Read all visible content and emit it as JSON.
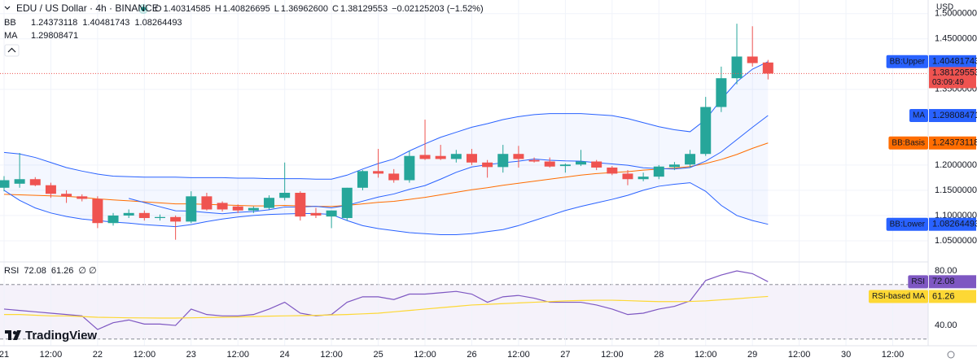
{
  "header": {
    "ohlc": [
      [
        "O",
        "1.40314585"
      ],
      [
        "H",
        "1.40826695"
      ],
      [
        "L",
        "1.36962600"
      ],
      [
        "C",
        "1.38129553"
      ]
    ],
    "change": "−0.02125203 (−1.52%)",
    "bb_label": "BB",
    "countdown": "03:09:49",
    "brand": "TradingView"
  },
  "chart_data": [
    {
      "type": "candlestick",
      "title": "EDU / US Dollar · 4h · BINANCE",
      "y_unit": "USD",
      "up_color": "#26a69a",
      "down_color": "#ef5350",
      "grid": true,
      "xlim": [
        -0.26,
        59.27
      ],
      "xticks": [
        {
          "value": 0,
          "label": "21"
        },
        {
          "value": 3,
          "label": "12:00"
        },
        {
          "value": 6,
          "label": "22"
        },
        {
          "value": 9,
          "label": "12:00"
        },
        {
          "value": 12,
          "label": "23"
        },
        {
          "value": 15,
          "label": "12:00"
        },
        {
          "value": 18,
          "label": "24"
        },
        {
          "value": 21,
          "label": "12:00"
        },
        {
          "value": 24,
          "label": "25"
        },
        {
          "value": 27,
          "label": "12:00"
        },
        {
          "value": 30,
          "label": "26"
        },
        {
          "value": 33,
          "label": "12:00"
        },
        {
          "value": 36,
          "label": "27"
        },
        {
          "value": 39,
          "label": "12:00"
        },
        {
          "value": 42,
          "label": "28"
        },
        {
          "value": 45,
          "label": "12:00"
        },
        {
          "value": 48,
          "label": "29"
        },
        {
          "value": 51,
          "label": "12:00"
        },
        {
          "value": 54,
          "label": "30"
        },
        {
          "value": 57,
          "label": "12:00"
        }
      ],
      "ylim": [
        1.008,
        1.527
      ],
      "yticks": [
        {
          "value": 1.5,
          "label": "1.50000000"
        },
        {
          "value": 1.45,
          "label": "1.45000000"
        },
        {
          "value": 1.35,
          "label": "1.35000000"
        },
        {
          "value": 1.2,
          "label": "1.20000000"
        },
        {
          "value": 1.15,
          "label": "1.15000000"
        },
        {
          "value": 1.1,
          "label": "1.10000000"
        },
        {
          "value": 1.05,
          "label": "1.05000000"
        }
      ],
      "candles": {
        "open": [
          1.155,
          1.163,
          1.172,
          1.16,
          1.143,
          1.138,
          1.133,
          1.085,
          1.1,
          1.105,
          1.095,
          1.097,
          1.088,
          1.138,
          1.125,
          1.118,
          1.11,
          1.115,
          1.135,
          1.145,
          1.105,
          1.098,
          1.095,
          1.155,
          1.188,
          1.183,
          1.17,
          1.22,
          1.218,
          1.212,
          1.222,
          1.205,
          1.196,
          1.222,
          1.21,
          1.207,
          1.198,
          1.201,
          1.207,
          1.195,
          1.183,
          1.172,
          1.177,
          1.196,
          1.201,
          1.222,
          1.315,
          1.372,
          1.415,
          1.40314585
        ],
        "high": [
          1.178,
          1.224,
          1.176,
          1.165,
          1.15,
          1.142,
          1.138,
          1.105,
          1.112,
          1.11,
          1.102,
          1.1,
          1.148,
          1.145,
          1.128,
          1.122,
          1.118,
          1.14,
          1.205,
          1.148,
          1.115,
          1.11,
          1.155,
          1.19,
          1.232,
          1.192,
          1.228,
          1.29,
          1.24,
          1.23,
          1.232,
          1.21,
          1.24,
          1.238,
          1.215,
          1.215,
          1.203,
          1.23,
          1.21,
          1.198,
          1.19,
          1.185,
          1.2,
          1.206,
          1.23,
          1.335,
          1.395,
          1.48,
          1.475,
          1.40826695
        ],
        "low": [
          1.148,
          1.155,
          1.158,
          1.135,
          1.125,
          1.128,
          1.075,
          1.08,
          1.095,
          1.09,
          1.09,
          1.052,
          1.085,
          1.11,
          1.108,
          1.105,
          1.105,
          1.112,
          1.13,
          1.09,
          1.095,
          1.075,
          1.09,
          1.15,
          1.175,
          1.165,
          1.165,
          1.21,
          1.21,
          1.205,
          1.2,
          1.175,
          1.185,
          1.195,
          1.205,
          1.195,
          1.185,
          1.198,
          1.19,
          1.18,
          1.16,
          1.168,
          1.172,
          1.19,
          1.195,
          1.218,
          1.305,
          1.36,
          1.395,
          1.369626
        ],
        "close": [
          1.17,
          1.172,
          1.16,
          1.143,
          1.138,
          1.133,
          1.085,
          1.1,
          1.105,
          1.095,
          1.097,
          1.088,
          1.138,
          1.112,
          1.112,
          1.11,
          1.115,
          1.135,
          1.145,
          1.098,
          1.1,
          1.11,
          1.155,
          1.188,
          1.183,
          1.17,
          1.218,
          1.212,
          1.212,
          1.222,
          1.205,
          1.196,
          1.222,
          1.212,
          1.207,
          1.197,
          1.201,
          1.207,
          1.195,
          1.183,
          1.172,
          1.177,
          1.197,
          1.201,
          1.222,
          1.315,
          1.372,
          1.415,
          1.402,
          1.38129553
        ]
      },
      "series": [
        {
          "name": "BB:Upper",
          "color": "#2962ff",
          "values": [
            1.225,
            1.222,
            1.215,
            1.205,
            1.195,
            1.188,
            1.182,
            1.178,
            1.177,
            1.176,
            1.176,
            1.176,
            1.175,
            1.175,
            1.175,
            1.174,
            1.174,
            1.173,
            1.173,
            1.173,
            1.172,
            1.172,
            1.18,
            1.192,
            1.203,
            1.212,
            1.228,
            1.242,
            1.255,
            1.265,
            1.275,
            1.282,
            1.29,
            1.296,
            1.3,
            1.302,
            1.302,
            1.302,
            1.3,
            1.298,
            1.292,
            1.284,
            1.276,
            1.27,
            1.266,
            1.29,
            1.33,
            1.365,
            1.39,
            1.40481743
          ]
        },
        {
          "name": "BB:Basis",
          "color": "#ff6d00",
          "values": [
            1.142,
            1.141,
            1.14,
            1.139,
            1.138,
            1.136,
            1.133,
            1.131,
            1.129,
            1.127,
            1.125,
            1.123,
            1.123,
            1.122,
            1.121,
            1.12,
            1.119,
            1.119,
            1.12,
            1.119,
            1.118,
            1.118,
            1.12,
            1.123,
            1.126,
            1.128,
            1.132,
            1.136,
            1.141,
            1.146,
            1.151,
            1.155,
            1.16,
            1.164,
            1.168,
            1.172,
            1.176,
            1.18,
            1.183,
            1.185,
            1.187,
            1.19,
            1.192,
            1.194,
            1.197,
            1.203,
            1.211,
            1.221,
            1.233,
            1.24373118
          ]
        },
        {
          "name": "BB:Lower",
          "color": "#2962ff",
          "values": [
            1.15,
            1.13,
            1.115,
            1.105,
            1.098,
            1.093,
            1.09,
            1.087,
            1.085,
            1.082,
            1.08,
            1.078,
            1.082,
            1.088,
            1.093,
            1.097,
            1.1,
            1.102,
            1.103,
            1.104,
            1.104,
            1.102,
            1.09,
            1.08,
            1.074,
            1.07,
            1.066,
            1.064,
            1.062,
            1.062,
            1.064,
            1.068,
            1.072,
            1.08,
            1.09,
            1.1,
            1.11,
            1.118,
            1.125,
            1.132,
            1.14,
            1.15,
            1.158,
            1.162,
            1.165,
            1.148,
            1.12,
            1.1,
            1.09,
            1.08264493
          ]
        },
        {
          "name": "MA",
          "color": "#2962ff",
          "values": [
            null,
            null,
            null,
            null,
            null,
            null,
            null,
            null,
            1.134,
            1.1257,
            1.1173,
            1.1093,
            1.1088,
            1.1059,
            1.1036,
            1.1063,
            1.108,
            1.1113,
            1.1169,
            1.117,
            1.1183,
            1.1152,
            1.12,
            1.1284,
            1.1366,
            1.1427,
            1.1519,
            1.1593,
            1.172,
            1.1856,
            1.1961,
            1.2007,
            1.2044,
            1.2077,
            1.2118,
            1.2094,
            1.2082,
            1.2077,
            1.2047,
            1.2022,
            1.1996,
            1.1946,
            1.1929,
            1.1922,
            1.195,
            1.2077,
            1.226,
            1.2504,
            1.2748,
            1.29808471
          ]
        }
      ]
    },
    {
      "type": "line",
      "extra": "∅ ∅",
      "ylim": [
        25.1,
        86.6
      ],
      "yticks": [
        {
          "value": 80,
          "label": "80.00"
        },
        {
          "value": 40,
          "label": "40.00"
        }
      ],
      "levels": [
        70,
        30
      ],
      "series": [
        {
          "name": "RSI",
          "color": "#7e57c2",
          "values": [
            52,
            51,
            50,
            49,
            48,
            47,
            37,
            42,
            44,
            41,
            41,
            40,
            52,
            48,
            47,
            47,
            48,
            52,
            57,
            49,
            47,
            48,
            57,
            61,
            61,
            59,
            63,
            63,
            64,
            65,
            63,
            57,
            61,
            62,
            60,
            57,
            57,
            57,
            55,
            52,
            48,
            49,
            52,
            54,
            58,
            73,
            77,
            80,
            78,
            72.08
          ]
        },
        {
          "name": "RSI-based MA",
          "color": "#fdd835",
          "values": [
            48,
            48,
            47.5,
            47,
            47,
            46.5,
            46,
            45.8,
            45.6,
            45.5,
            45.4,
            45.4,
            45.6,
            45.8,
            46,
            46.2,
            46.5,
            46.8,
            47,
            47.2,
            47.4,
            47.7,
            48,
            48.5,
            49,
            50,
            51,
            52,
            53,
            54,
            55,
            55.5,
            56,
            56.5,
            57,
            57.5,
            58,
            58.3,
            58.5,
            58.5,
            58.2,
            57.8,
            57.5,
            57.5,
            57.6,
            58,
            58.8,
            59.6,
            60.5,
            61.26
          ]
        }
      ]
    }
  ]
}
